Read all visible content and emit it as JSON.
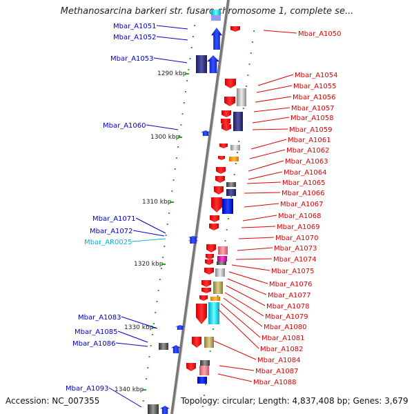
{
  "title": "Methanosarcina barkeri str. fusaro chromosome 1, complete se...",
  "footer": {
    "accession": "Accession: NC_007355",
    "summary": "Topology: circular; Length: 4,837,408 bp; Genes: 3,679"
  },
  "colors": {
    "left_label": "#0000cc",
    "trna_label": "#00b4d8",
    "right_label": "#dd0000",
    "ruler_tick": "#22aa22",
    "axis": "#888888"
  },
  "ruler": [
    "1290 kbp",
    "1300 kbp",
    "1310 kbp",
    "1320 kbp",
    "1330 kbp",
    "1340 kbp"
  ],
  "left_labels": [
    {
      "text": "Mbar_A1051",
      "kind": "gene"
    },
    {
      "text": "Mbar_A1052",
      "kind": "gene"
    },
    {
      "text": "Mbar_A1053",
      "kind": "gene"
    },
    {
      "text": "Mbar_A1060",
      "kind": "gene"
    },
    {
      "text": "Mbar_A1071",
      "kind": "gene"
    },
    {
      "text": "Mbar_A1072",
      "kind": "gene"
    },
    {
      "text": "Mbar_AR0025",
      "kind": "trna"
    },
    {
      "text": "Mbar_A1083",
      "kind": "gene"
    },
    {
      "text": "Mbar_A1085",
      "kind": "gene"
    },
    {
      "text": "Mbar_A1086",
      "kind": "gene"
    },
    {
      "text": "Mbar_A1093",
      "kind": "gene"
    }
  ],
  "right_labels": [
    "Mbar_A1050",
    "Mbar_A1054",
    "Mbar_A1055",
    "Mbar_A1056",
    "Mbar_A1057",
    "Mbar_A1058",
    "Mbar_A1059",
    "Mbar_A1061",
    "Mbar_A1062",
    "Mbar_A1063",
    "Mbar_A1064",
    "Mbar_A1065",
    "Mbar_A1066",
    "Mbar_A1067",
    "Mbar_A1068",
    "Mbar_A1069",
    "Mbar_A1070",
    "Mbar_A1073",
    "Mbar_A1074",
    "Mbar_A1075",
    "Mbar_A1076",
    "Mbar_A1077",
    "Mbar_A1078",
    "Mbar_A1079",
    "Mbar_A1080",
    "Mbar_A1081",
    "Mbar_A1082",
    "Mbar_A1084",
    "Mbar_A1087",
    "Mbar_A1088"
  ]
}
